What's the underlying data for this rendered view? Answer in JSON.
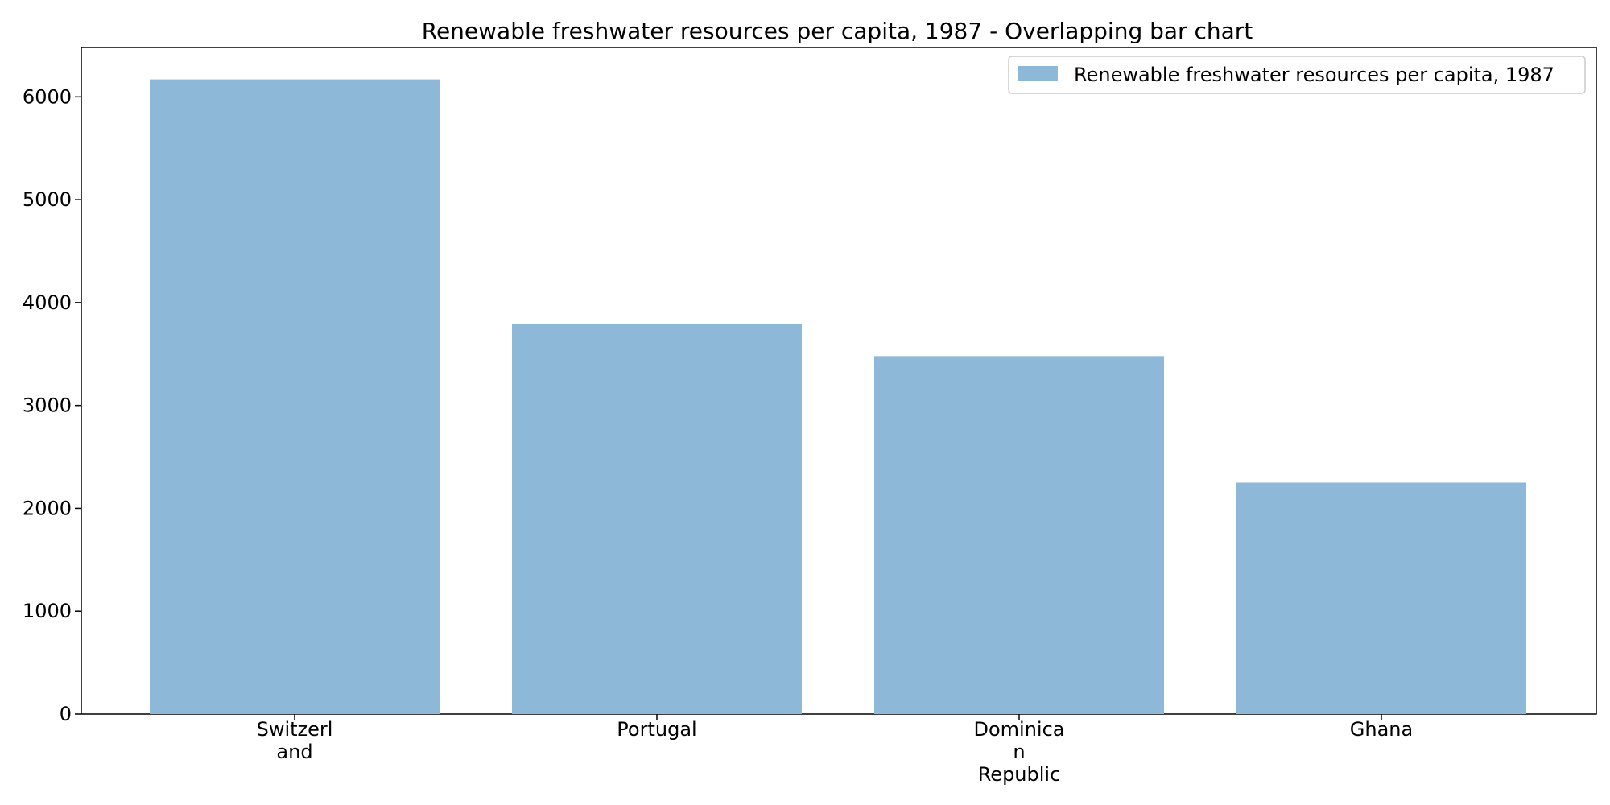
{
  "chart_data": {
    "type": "bar",
    "title": "Renewable freshwater resources per capita, 1987 - Overlapping bar chart",
    "categories": [
      [
        "Switzerl",
        "and"
      ],
      [
        "Portugal"
      ],
      [
        "Dominica",
        "n",
        "Republic"
      ],
      [
        "Ghana"
      ]
    ],
    "series": [
      {
        "name": "Renewable freshwater resources per capita, 1987",
        "values": [
          6170,
          3790,
          3480,
          2250
        ],
        "color": "#8db8d8"
      }
    ],
    "xlabel": "",
    "ylabel": "",
    "ylim": [
      0,
      6480
    ],
    "yticks": [
      0,
      1000,
      2000,
      3000,
      4000,
      5000,
      6000
    ],
    "grid": false,
    "legend_position": "top-right"
  }
}
